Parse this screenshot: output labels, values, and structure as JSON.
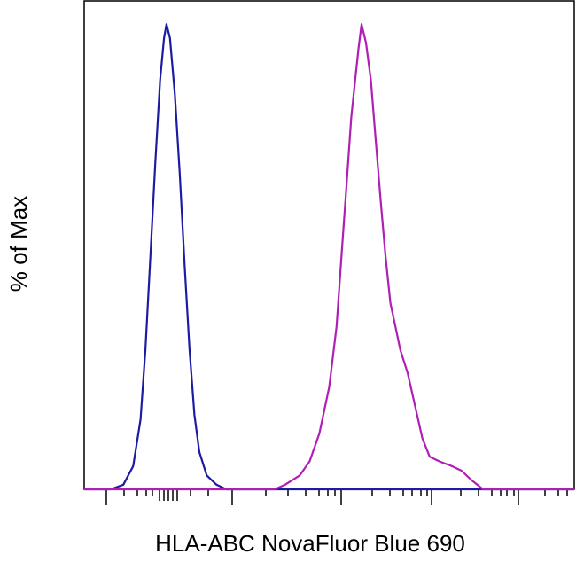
{
  "chart_data": {
    "type": "line",
    "xlabel": "HLA-ABC NovaFluor Blue 690",
    "ylabel": "% of Max",
    "xlim": [
      0,
      100
    ],
    "ylim": [
      0,
      105
    ],
    "series": [
      {
        "color": "#1c1ca3",
        "x": [
          0,
          5.4,
          8,
          10,
          11.5,
          12.5,
          13.5,
          14.5,
          15.5,
          16.3,
          16.8,
          17.5,
          18.5,
          19.5,
          20.5,
          21.5,
          22.5,
          23.5,
          25,
          27,
          29,
          100
        ],
        "values": [
          0,
          0,
          1,
          5,
          15,
          30,
          50,
          70,
          88,
          97,
          100,
          97,
          85,
          68,
          48,
          30,
          16,
          8,
          3,
          1,
          0,
          0
        ]
      },
      {
        "color": "#b01fb5",
        "x": [
          0,
          38.9,
          41,
          44,
          46,
          48,
          50,
          51.5,
          52.5,
          53.5,
          54.5,
          55.5,
          56,
          56.6,
          57.5,
          58.5,
          59.5,
          60.5,
          61.5,
          62.5,
          63.5,
          64.5,
          66,
          67.5,
          69,
          70.5,
          72.5,
          75,
          77,
          79,
          81.4,
          100
        ],
        "values": [
          0,
          0,
          1,
          3,
          6,
          12,
          22,
          35,
          50,
          65,
          80,
          90,
          95,
          100,
          96,
          88,
          75,
          62,
          50,
          40,
          35,
          30,
          25,
          18,
          11,
          7,
          6,
          5,
          4,
          2,
          0,
          0
        ]
      }
    ]
  }
}
